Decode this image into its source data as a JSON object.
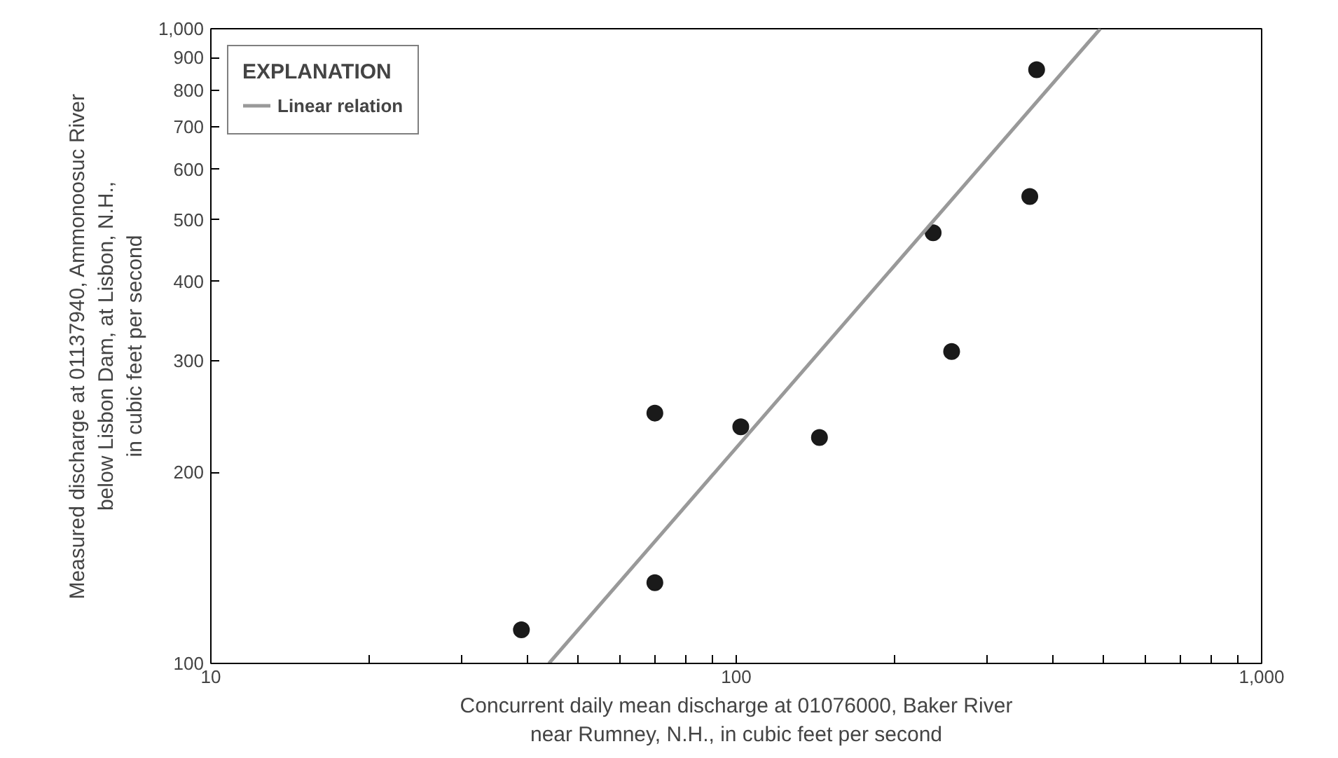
{
  "chart_data": {
    "type": "scatter",
    "xlabel": "Concurrent daily mean discharge at 01076000, Baker River\nnear Rumney, N.H., in cubic feet per second",
    "ylabel": "Measured discharge at 01137940, Ammonoosuc River\nbelow Lisbon Dam, at Lisbon, N.H.,\nin cubic feet per second",
    "legend_title": "EXPLANATION",
    "log": "xy",
    "grid": false,
    "legend": "top left",
    "xlim": [
      10,
      1000
    ],
    "ylim": [
      100,
      1000
    ],
    "xticks": [
      10,
      {
        "value": 20,
        "label": null
      },
      {
        "value": 30,
        "label": null
      },
      {
        "value": 40,
        "label": null
      },
      {
        "value": 50,
        "label": null
      },
      {
        "value": 60,
        "label": null
      },
      {
        "value": 70,
        "label": null
      },
      {
        "value": 80,
        "label": null
      },
      {
        "value": 90,
        "label": null
      },
      100,
      {
        "value": 200,
        "label": null
      },
      {
        "value": 300,
        "label": null
      },
      {
        "value": 400,
        "label": null
      },
      {
        "value": 500,
        "label": null
      },
      {
        "value": 600,
        "label": null
      },
      {
        "value": 700,
        "label": null
      },
      {
        "value": 800,
        "label": null
      },
      {
        "value": 900,
        "label": null
      },
      {
        "value": 1000,
        "label": "1,000"
      }
    ],
    "yticks": [
      100,
      200,
      300,
      400,
      500,
      600,
      700,
      800,
      900,
      {
        "value": 1000,
        "label": "1,000"
      }
    ],
    "series": [
      {
        "marker": "circle",
        "color": "#1a1a1a",
        "x": [
          39,
          70,
          70,
          102,
          144,
          237,
          257,
          362,
          373
        ],
        "values": [
          113,
          248,
          134,
          236,
          227,
          477,
          310,
          544,
          862
        ]
      },
      {
        "type": "line",
        "marker": "none",
        "name": "Linear relation",
        "color": "#999999",
        "line_style": "solid",
        "x": [
          44,
          493
        ],
        "values": [
          100,
          1000
        ]
      }
    ]
  }
}
